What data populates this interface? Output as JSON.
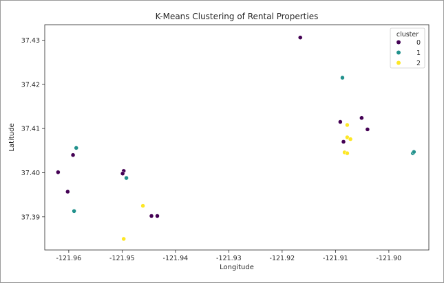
{
  "colors": {
    "cluster_0": "#440154",
    "cluster_1": "#21918c",
    "cluster_2": "#fde725"
  },
  "chart_data": {
    "type": "scatter",
    "title": "K-Means Clustering of Rental Properties",
    "xlabel": "Longitude",
    "ylabel": "Latitude",
    "xlim": [
      -121.9645,
      -121.8925
    ],
    "ylim": [
      37.3825,
      37.4335
    ],
    "xticks": [
      -121.96,
      -121.95,
      -121.94,
      -121.93,
      -121.92,
      -121.91,
      -121.9
    ],
    "xtick_labels": [
      "-121.96",
      "-121.95",
      "-121.94",
      "-121.93",
      "-121.92",
      "-121.91",
      "-121.90"
    ],
    "yticks": [
      37.39,
      37.4,
      37.41,
      37.42,
      37.43
    ],
    "ytick_labels": [
      "37.39",
      "37.40",
      "37.41",
      "37.42",
      "37.43"
    ],
    "grid": false,
    "legend": {
      "title": "cluster",
      "placement": "top-right",
      "entries": [
        "0",
        "1",
        "2"
      ]
    },
    "series": [
      {
        "name": "0",
        "points": [
          [
            -121.9166,
            37.4306
          ],
          [
            -121.962,
            37.4001
          ],
          [
            -121.9592,
            37.404
          ],
          [
            -121.9602,
            37.3957
          ],
          [
            -121.9497,
            37.4004
          ],
          [
            -121.9499,
            37.3998
          ],
          [
            -121.9445,
            37.3902
          ],
          [
            -121.9434,
            37.3902
          ],
          [
            -121.9091,
            37.4115
          ],
          [
            -121.9051,
            37.4124
          ],
          [
            -121.904,
            37.4098
          ],
          [
            -121.9085,
            37.407
          ]
        ]
      },
      {
        "name": "1",
        "points": [
          [
            -121.9586,
            37.4056
          ],
          [
            -121.959,
            37.3913
          ],
          [
            -121.9492,
            37.3988
          ],
          [
            -121.9087,
            37.4215
          ],
          [
            -121.8955,
            37.4044
          ],
          [
            -121.8953,
            37.4047
          ]
        ]
      },
      {
        "name": "2",
        "points": [
          [
            -121.9461,
            37.3925
          ],
          [
            -121.9497,
            37.385
          ],
          [
            -121.9078,
            37.4108
          ],
          [
            -121.9078,
            37.408
          ],
          [
            -121.9072,
            37.4076
          ],
          [
            -121.9083,
            37.4046
          ],
          [
            -121.9078,
            37.4044
          ]
        ]
      }
    ]
  }
}
